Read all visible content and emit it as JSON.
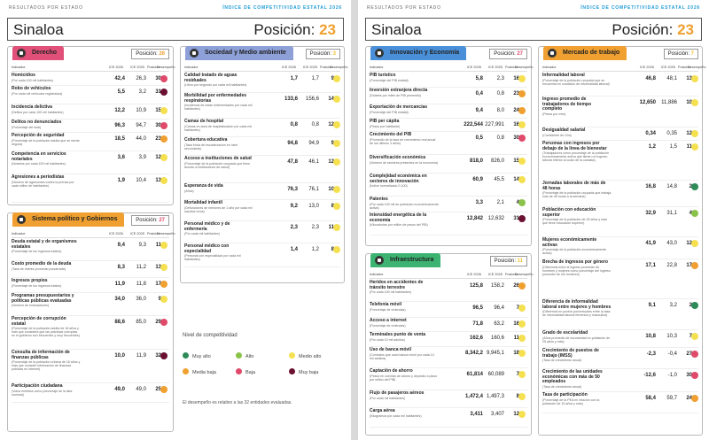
{
  "header": {
    "left_label": "RESULTADOS POR ESTADO",
    "right_label": "ÍNDICE DE COMPETITIVIDAD ESTATAL 2026"
  },
  "title": {
    "state": "Sinaloa",
    "position_label": "Posición:",
    "position_value": "23"
  },
  "columns": {
    "indicator": "Indicador",
    "ice2026": "ICE 2026",
    "ice2025": "ICE 2025",
    "position": "Posición",
    "performance": "Desempeño"
  },
  "colors": {
    "muy_alto": "#2e8b57",
    "alto": "#8bc34a",
    "medio_alto": "#f5e050",
    "medio_bajo": "#f0a030",
    "bajo": "#e04a6a",
    "muy_bajo": "#6b1030"
  },
  "legend": {
    "title": "Nivel de competitividad",
    "items": [
      {
        "label": "Muy alto",
        "color": "#2e8b57"
      },
      {
        "label": "Alto",
        "color": "#8bc34a"
      },
      {
        "label": "Medio alto",
        "color": "#f5e050"
      },
      {
        "label": "Media baja",
        "color": "#f0a030"
      },
      {
        "label": "Baja",
        "color": "#e04a6a"
      },
      {
        "label": "Muy baja",
        "color": "#6b1030"
      }
    ],
    "note": "El desempeño es relativo a las 32 entidades evaluadas."
  },
  "pillars": [
    {
      "id": "derecho",
      "title": "Derecho",
      "tab_color": "#e05078",
      "position_label": "Posición:",
      "position": "26",
      "pos_color": "#f0a030",
      "rows": [
        {
          "name": "Homicidios",
          "desc": "(Por cada 100 mil habitantes)",
          "v26": "42,4",
          "v25": "26,3",
          "pos": "30",
          "color": "#e04a6a"
        },
        {
          "name": "Robo de vehículos",
          "desc": "(Por cada mil vehículos registrados)",
          "v26": "5,5",
          "v25": "3,2",
          "pos": "31",
          "color": "#6b1030"
        },
        {
          "name": "Incidencia delictiva",
          "desc": "(Delitos por cada 100 mil habitantes)",
          "v26": "12,2",
          "v25": "10,9",
          "pos": "15",
          "color": "#f5e050"
        },
        {
          "name": "Delitos no denunciados",
          "desc": "(Porcentaje del total)",
          "v26": "96,3",
          "v25": "94,7",
          "pos": "30",
          "color": "#e04a6a"
        },
        {
          "name": "Percepción de seguridad",
          "desc": "(Porcentaje de la población adulta que se siente segura)",
          "v26": "18,5",
          "v25": "44,0",
          "pos": "23",
          "color": "#f0a030"
        },
        {
          "name": "Competencia en servicios notariales",
          "desc": "(Notarios por cada 100 mil habitantes)",
          "v26": "3,6",
          "v25": "3,9",
          "pos": "12",
          "color": "#f5e050"
        },
        {
          "name": "Agresiones a periodistas",
          "desc": "(Número de agresiones contra la prensa por cada millón de habitantes)",
          "v26": "1,9",
          "v25": "10,4",
          "pos": "13",
          "color": "#f5e050"
        }
      ]
    },
    {
      "id": "politico",
      "title": "Sistema político y Gobiernos",
      "tab_color": "#f0a030",
      "position_label": "Posición:",
      "position": "27",
      "pos_color": "#e04a6a",
      "rows": [
        {
          "name": "Deuda estatal y de organismos estatales",
          "desc": "(Porcentaje de los ingresos totales)",
          "v26": "9,4",
          "v25": "9,3",
          "pos": "11",
          "color": "#f5e050"
        },
        {
          "name": "Costo promedio de la deuda",
          "desc": "(Tasa de interés promedio ponderada)",
          "v26": "8,3",
          "v25": "11,2",
          "pos": "13",
          "color": "#f5e050"
        },
        {
          "name": "Ingresos propios",
          "desc": "(Porcentaje de los ingresos totales)",
          "v26": "11,9",
          "v25": "11,8",
          "pos": "17",
          "color": "#f0a030"
        },
        {
          "name": "Programas presupuestarios y políticas públicas evaluadas",
          "desc": "(Número de evaluaciones)",
          "v26": "34,0",
          "v25": "36,0",
          "pos": "9",
          "color": "#f5e050"
        },
        {
          "name": "Percepción de corrupción estatal",
          "desc": "(Porcentaje de la población adulta de 18 años y más que considera que las prácticas corruptas en el gobierno son frecuentes y muy frecuentes)",
          "v26": "88,6",
          "v25": "85,0",
          "pos": "29",
          "color": "#e04a6a"
        },
        {
          "name": "Consulta de información de finanzas públicas",
          "desc": "(Porcentaje de la población urbana de 18 años y más que consultó información de finanzas públicas en internet)",
          "v26": "10,0",
          "v25": "11,9",
          "pos": "32",
          "color": "#6b1030"
        },
        {
          "name": "Participación ciudadana",
          "desc": "(Votos emitidos como porcentaje de la lista nominal)",
          "v26": "49,0",
          "v25": "49,0",
          "pos": "25",
          "color": "#f0a030"
        }
      ]
    },
    {
      "id": "sociedad",
      "title": "Sociedad y Medio ambiente",
      "tab_color": "#8ea0d8",
      "position_label": "Posición:",
      "position": "3",
      "pos_color": "#f5c030",
      "rows": [
        {
          "name": "Calidad tratado de aguas residuales",
          "desc": "(Litros por segundo por cada mil habitantes)",
          "v26": "1,7",
          "v25": "1,7",
          "pos": "9",
          "color": "#f5e050"
        },
        {
          "name": "Morbilidad por enfermedades respiratorias",
          "desc": "(Incidencia de estas enfermedades por cada mil habitantes)",
          "v26": "133,6",
          "v25": "156,6",
          "pos": "14",
          "color": "#f5e050"
        },
        {
          "name": "Camas de hospital",
          "desc": "(Camas en área de hospitalización por cada mil habitantes)",
          "v26": "0,8",
          "v25": "0,8",
          "pos": "12",
          "color": "#f5e050"
        },
        {
          "name": "Cobertura educativa",
          "desc": "(Tasa bruta de escolarización en nivel secundaria)",
          "v26": "94,8",
          "v25": "94,9",
          "pos": "9",
          "color": "#f5e050"
        },
        {
          "name": "Acceso a instituciones de salud",
          "desc": "(Porcentaje de la población ocupada que tiene acceso a instituciones de salud)",
          "v26": "47,8",
          "v25": "46,1",
          "pos": "12",
          "color": "#f5e050"
        },
        {
          "name": "Esperanza de vida",
          "desc": "(Años)",
          "v26": "76,3",
          "v25": "76,1",
          "pos": "10",
          "color": "#f5e050"
        },
        {
          "name": "Mortalidad infantil",
          "desc": "(Defunciones de menores de 1 año por cada mil nacidos vivos)",
          "v26": "9,2",
          "v25": "13,0",
          "pos": "8",
          "color": "#f5e050"
        },
        {
          "name": "Personal médico y de enfermería",
          "desc": "(Por cada mil habitantes)",
          "v26": "2,3",
          "v25": "2,3",
          "pos": "11",
          "color": "#f5e050"
        },
        {
          "name": "Personal médico con especialidad",
          "desc": "(Personal con especialidad por cada mil habitantes)",
          "v26": "1,4",
          "v25": "1,2",
          "pos": "8",
          "color": "#f5e050"
        }
      ]
    },
    {
      "id": "innovacion",
      "title": "Innovación y Economía",
      "tab_color": "#4a90d9",
      "position_label": "Posición:",
      "position": "27",
      "pos_color": "#e04a6a",
      "rows": [
        {
          "name": "PIB turístico",
          "desc": "(Porcentaje del PIB estatal)",
          "v26": "5,8",
          "v25": "2,3",
          "pos": "16",
          "color": "#f5e050"
        },
        {
          "name": "Inversión extranjera directa",
          "desc": "(Dólares por miles de PIB promedio)",
          "v26": "0,4",
          "v25": "0,8",
          "pos": "23",
          "color": "#f0a030"
        },
        {
          "name": "Exportación de mercancías",
          "desc": "(Porcentaje del PIB estatal)",
          "v26": "9,4",
          "v25": "8,0",
          "pos": "24",
          "color": "#f0a030"
        },
        {
          "name": "PIB per cápita",
          "desc": "(Pesos por habitante)",
          "v26": "222,544",
          "v25": "227,991",
          "pos": "16",
          "color": "#f5e050"
        },
        {
          "name": "Crecimiento del PIB",
          "desc": "(Promedio de la tasa de crecimiento real anual de los últimos 3 años)",
          "v26": "0,5",
          "v25": "0,8",
          "pos": "30",
          "color": "#e04a6a"
        },
        {
          "name": "Diversificación económica",
          "desc": "(Número de sectores presentes en la economía)",
          "v26": "818,0",
          "v25": "826,0",
          "pos": "15",
          "color": "#f5e050"
        },
        {
          "name": "Complejidad económica en sectores de innovación",
          "desc": "(Índice normalizado 0-100)",
          "v26": "60,9",
          "v25": "45,5",
          "pos": "14",
          "color": "#f5e050"
        },
        {
          "name": "Patentes",
          "desc": "(Por cada 100 mil de población económicamente activa)",
          "v26": "3,3",
          "v25": "2,1",
          "pos": "4",
          "color": "#8bc34a"
        },
        {
          "name": "Intensidad energética de la economía",
          "desc": "(Kilocalorías por millón de pesos del PIB)",
          "v26": "12,842",
          "v25": "12,632",
          "pos": "31",
          "color": "#6b1030"
        }
      ]
    },
    {
      "id": "infraestructura",
      "title": "Infraestructura",
      "tab_color": "#3cb371",
      "position_label": "Posición:",
      "position": "11",
      "pos_color": "#f5c030",
      "rows": [
        {
          "name": "Heridos en accidentes de tránsito terrestre",
          "desc": "(Por cada 100 mil habitantes)",
          "v26": "125,8",
          "v25": "158,2",
          "pos": "26",
          "color": "#f0a030"
        },
        {
          "name": "Telefonía móvil",
          "desc": "(Porcentaje de viviendas)",
          "v26": "96,5",
          "v25": "96,4",
          "pos": "7",
          "color": "#f5e050"
        },
        {
          "name": "Acceso a internet",
          "desc": "(Porcentaje de viviendas)",
          "v26": "71,8",
          "v25": "63,2",
          "pos": "16",
          "color": "#f5e050"
        },
        {
          "name": "Terminales punto de venta",
          "desc": "(Por cada 10 mil adultos)",
          "v26": "162,6",
          "v25": "160,6",
          "pos": "11",
          "color": "#f5e050"
        },
        {
          "name": "Uso de banca móvil",
          "desc": "(Contratos que usan banca móvil por cada 10 mil adultos)",
          "v26": "8,342,2",
          "v25": "9,945,1",
          "pos": "18",
          "color": "#f5e050"
        },
        {
          "name": "Captación de ahorro",
          "desc": "(Pesos en cuentas de ahorro y depósito a plazo por millón del PIB)",
          "v26": "61,814",
          "v25": "60,089",
          "pos": "7",
          "color": "#f5e050"
        },
        {
          "name": "Flujo de pasajeros aéreos",
          "desc": "(Por cada mil habitantes)",
          "v26": "1,472,4",
          "v25": "1,497,3",
          "pos": "8",
          "color": "#f5e050"
        },
        {
          "name": "Carga aérea",
          "desc": "(Kilogramos por cada mil habitantes)",
          "v26": "3,411",
          "v25": "3,407",
          "pos": "12",
          "color": "#f5e050"
        }
      ]
    },
    {
      "id": "mercado",
      "title": "Mercado de trabajo",
      "tab_color": "#f0a030",
      "position_label": "Posición:",
      "position": "7",
      "pos_color": "#f5c030",
      "rows": [
        {
          "name": "Informalidad laboral",
          "desc": "(Porcentaje de la población ocupada que se encuentra en condición de informalidad laboral)",
          "v26": "46,8",
          "v25": "48,1",
          "pos": "13",
          "color": "#f5e050"
        },
        {
          "name": "Ingreso promedio de trabajadores de tiempo completo",
          "desc": "(Pesos por mes)",
          "v26": "12,650",
          "v25": "11,886",
          "pos": "10",
          "color": "#f5e050"
        },
        {
          "name": "Desigualdad salarial",
          "desc": "(Coeficiente de Gini)",
          "v26": "0,34",
          "v25": "0,35",
          "pos": "12",
          "color": "#f5e050"
        },
        {
          "name": "Personas con ingresos por debajo de la línea de bienestar",
          "desc": "(Trabajadores como porcentaje de la población económicamente activa que tienen un ingreso laboral inferior al costo de la canasta)",
          "v26": "1,2",
          "v25": "1,5",
          "pos": "11",
          "color": "#f5e050"
        },
        {
          "name": "Jornadas laborales de más de 48 horas",
          "desc": "(Porcentaje de la población ocupada que trabaja más de 48 horas a la semana)",
          "v26": "16,8",
          "v25": "14,8",
          "pos": "2",
          "color": "#2e8b57"
        },
        {
          "name": "Población con educación superior",
          "desc": "(Porcentaje de la población de 25 años y más que tiene educación superior)",
          "v26": "32,9",
          "v25": "31,1",
          "pos": "4",
          "color": "#8bc34a"
        },
        {
          "name": "Mujeres económicamente activas",
          "desc": "(Porcentaje de la población económicamente activa)",
          "v26": "41,9",
          "v25": "43,0",
          "pos": "12",
          "color": "#f5e050"
        },
        {
          "name": "Brecha de ingresos por género",
          "desc": "(Diferencia entre el ingreso promedio de hombres y mujeres como porcentaje del ingreso promedio de los hombres)",
          "v26": "17,1",
          "v25": "22,8",
          "pos": "17",
          "color": "#f0a030"
        },
        {
          "name": "Diferencia de informalidad laboral entre mujeres y hombres",
          "desc": "(Diferencia en puntos porcentuales entre la tasa de informalidad laboral femenina y masculina)",
          "v26": "9,1",
          "v25": "3,2",
          "pos": "2",
          "color": "#2e8b57"
        },
        {
          "name": "Grado de escolaridad",
          "desc": "(Años promedio de escolaridad en población de 25 años y más)",
          "v26": "10,8",
          "v25": "10,3",
          "pos": "7",
          "color": "#f5e050"
        },
        {
          "name": "Crecimiento de puestos de trabajo (IMSS)",
          "desc": "(Tasa de crecimiento anual)",
          "v26": "-2,3",
          "v25": "-0,4",
          "pos": "27",
          "color": "#e04a6a"
        },
        {
          "name": "Crecimiento de las unidades económicas con más de 50 empleados",
          "desc": "(Tasa de crecimiento anual)",
          "v26": "-12,6",
          "v25": "-1,0",
          "pos": "30",
          "color": "#e04a6a"
        },
        {
          "name": "Tasa de participación",
          "desc": "(Porcentaje de la PEA en relación con la población de 15 años y más)",
          "v26": "58,4",
          "v25": "59,7",
          "pos": "24",
          "color": "#f0a030"
        }
      ]
    }
  ]
}
